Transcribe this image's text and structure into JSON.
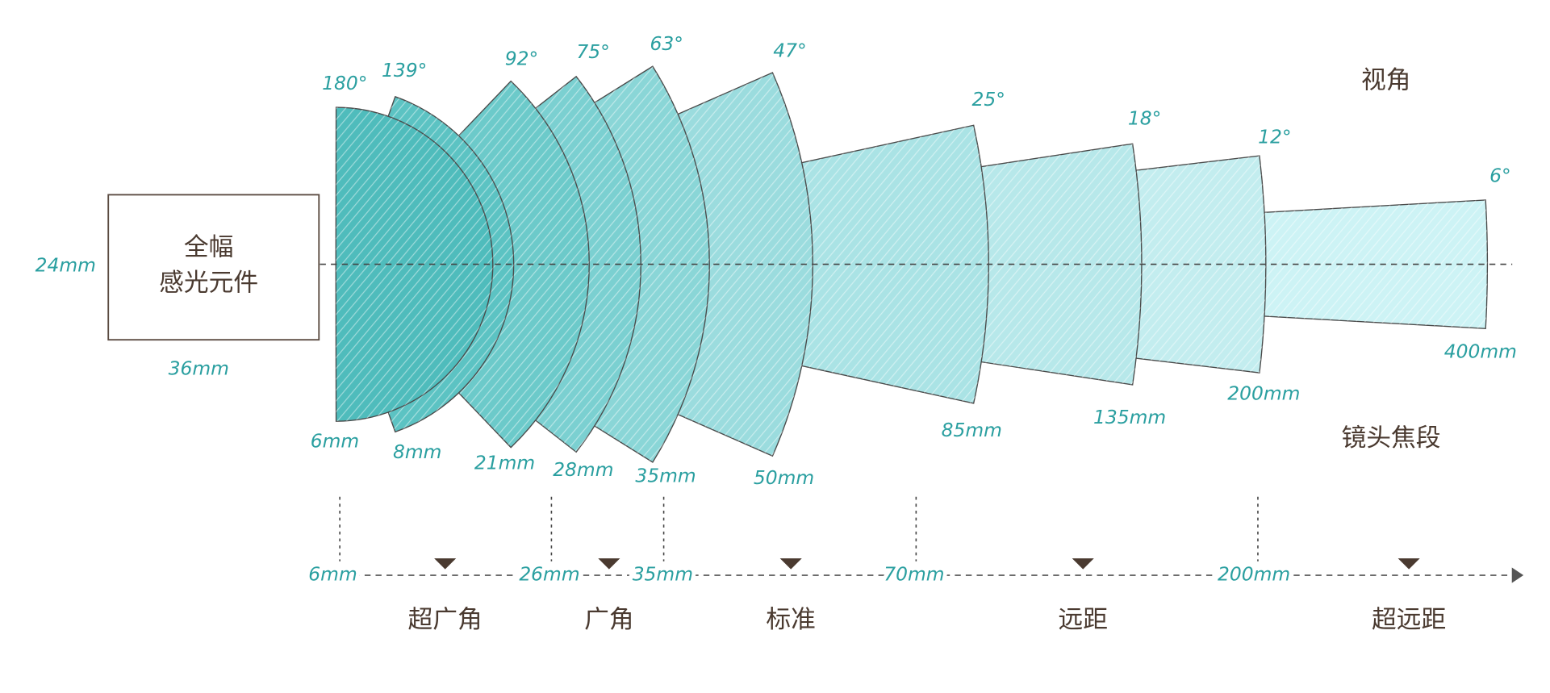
{
  "sensor": {
    "label_lines": [
      "全幅",
      "感光元件"
    ],
    "height": "24mm",
    "width": "36mm"
  },
  "headers": {
    "angle": "视角",
    "focal": "镜头焦段"
  },
  "lenses": [
    {
      "focal": "6mm",
      "angle": "180°"
    },
    {
      "focal": "8mm",
      "angle": "139°"
    },
    {
      "focal": "21mm",
      "angle": "92°"
    },
    {
      "focal": "28mm",
      "angle": "75°"
    },
    {
      "focal": "35mm",
      "angle": "63°"
    },
    {
      "focal": "50mm",
      "angle": "47°"
    },
    {
      "focal": "85mm",
      "angle": "25°"
    },
    {
      "focal": "135mm",
      "angle": "18°"
    },
    {
      "focal": "200mm",
      "angle": "12°"
    },
    {
      "focal": "400mm",
      "angle": "6°"
    }
  ],
  "axis": {
    "ticks": [
      "6mm",
      "26mm",
      "35mm",
      "70mm",
      "200mm"
    ],
    "ranges": [
      "超广角",
      "广角",
      "标准",
      "远距",
      "超远距"
    ]
  }
}
